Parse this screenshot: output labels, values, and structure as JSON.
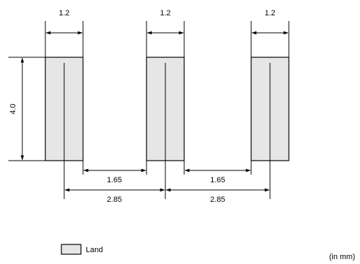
{
  "dimensions": {
    "land_width": "1.2",
    "land_height": "4.0",
    "inner_gap": "1.65",
    "pitch": "2.85"
  },
  "legend": {
    "land_label": "Land",
    "land_color": "#e6e6e6"
  },
  "units_note": "(in mm)"
}
